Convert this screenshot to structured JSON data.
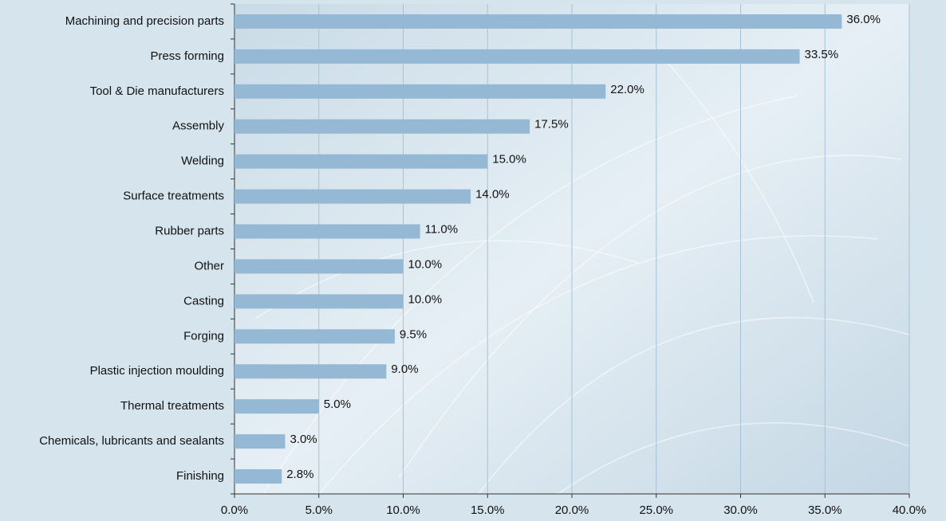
{
  "chart_data": {
    "type": "hbar",
    "categories": [
      "Machining and precision parts",
      "Press forming",
      "Tool & Die manufacturers",
      "Assembly",
      "Welding",
      "Surface treatments",
      "Rubber parts",
      "Other",
      "Casting",
      "Forging",
      "Plastic injection moulding",
      "Thermal treatments",
      "Chemicals, lubricants and sealants",
      "Finishing"
    ],
    "values": [
      36.0,
      33.5,
      22.0,
      17.5,
      15.0,
      14.0,
      11.0,
      10.0,
      10.0,
      9.5,
      9.0,
      5.0,
      3.0,
      2.8
    ],
    "value_labels": [
      "36.0%",
      "33.5%",
      "22.0%",
      "17.5%",
      "15.0%",
      "14.0%",
      "11.0%",
      "10.0%",
      "10.0%",
      "9.5%",
      "9.0%",
      "5.0%",
      "3.0%",
      "2.8%"
    ],
    "color": "#95b9d4",
    "xlim": [
      0,
      40
    ],
    "xticks": [
      {
        "value": 0,
        "label": "0.0%"
      },
      {
        "value": 5,
        "label": "5.0%"
      },
      {
        "value": 10,
        "label": "10.0%"
      },
      {
        "value": 15,
        "label": "15.0%"
      },
      {
        "value": 20,
        "label": "20.0%"
      },
      {
        "value": 25,
        "label": "25.0%"
      },
      {
        "value": 30,
        "label": "30.0%"
      },
      {
        "value": 35,
        "label": "35.0%"
      },
      {
        "value": 40,
        "label": "40.0%"
      }
    ],
    "grid": true
  }
}
